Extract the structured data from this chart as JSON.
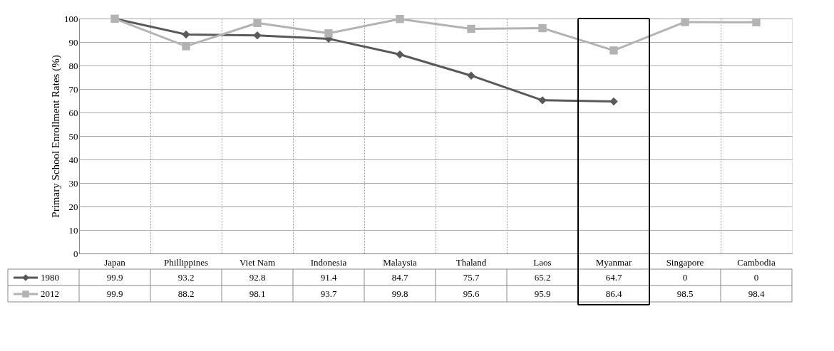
{
  "chart_data": {
    "type": "line",
    "ylabel": "Primary School Enrollment Rates (%)",
    "categories": [
      "Japan",
      "Phillippines",
      "Viet Nam",
      "Indonesia",
      "Malaysia",
      "Thaland",
      "Laos",
      "Myanmar",
      "Singapore",
      "Cambodia"
    ],
    "series": [
      {
        "name": "1980",
        "color": "#595959",
        "marker": "diamond",
        "values": [
          99.9,
          93.2,
          92.8,
          91.4,
          84.7,
          75.7,
          65.2,
          64.7,
          null,
          null
        ],
        "value_labels": [
          "99.9",
          "93.2",
          "92.8",
          "91.4",
          "84.7",
          "75.7",
          "65.2",
          "64.7",
          "0",
          "0"
        ]
      },
      {
        "name": "2012",
        "color": "#b3b3b3",
        "marker": "square",
        "values": [
          99.9,
          88.2,
          98.1,
          93.7,
          99.8,
          95.6,
          95.9,
          86.4,
          98.5,
          98.4
        ],
        "value_labels": [
          "99.9",
          "88.2",
          "98.1",
          "93.7",
          "99.8",
          "95.6",
          "95.9",
          "86.4",
          "98.5",
          "98.4"
        ]
      }
    ],
    "ylim": [
      0,
      100
    ],
    "yticks": [
      0,
      10,
      20,
      30,
      40,
      50,
      60,
      70,
      80,
      90,
      100
    ],
    "grid": true,
    "legend": "bottom",
    "line_style": "solid"
  }
}
